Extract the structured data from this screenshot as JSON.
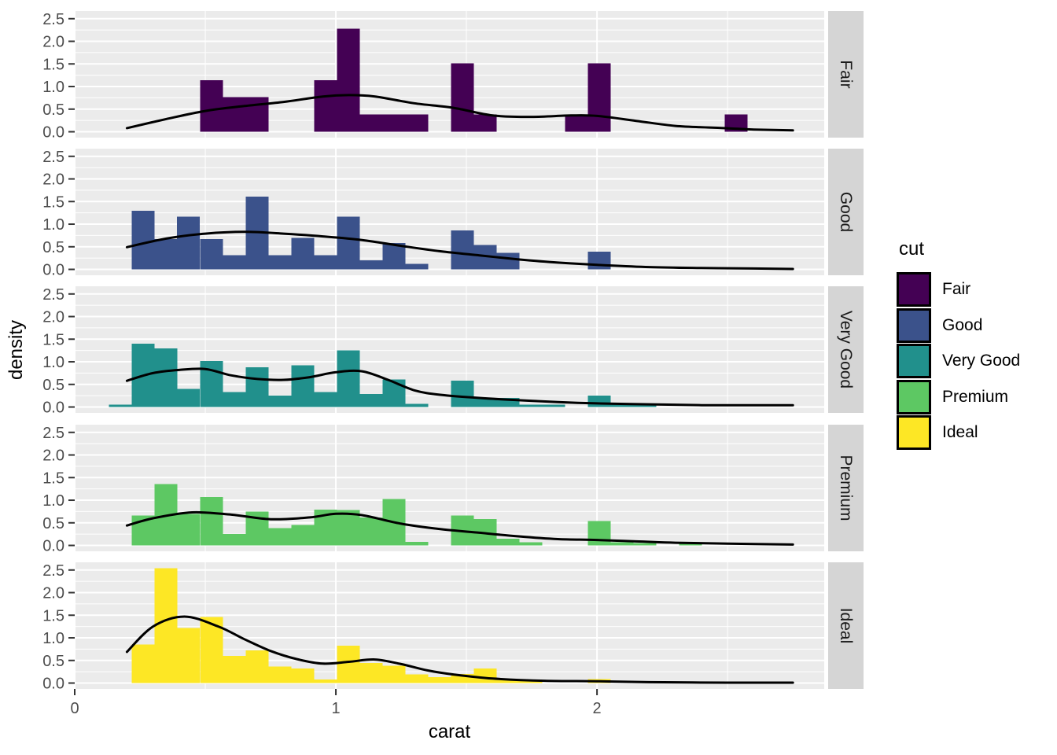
{
  "figure": {
    "xlabel": "carat",
    "ylabel": "density",
    "x_ticks": [
      {
        "v": 0,
        "label": "0"
      },
      {
        "v": 1,
        "label": "1"
      },
      {
        "v": 2,
        "label": "2"
      }
    ],
    "y_ticks": [
      {
        "v": 0.0,
        "label": "0.0"
      },
      {
        "v": 0.5,
        "label": "0.5"
      },
      {
        "v": 1.0,
        "label": "1.0"
      },
      {
        "v": 1.5,
        "label": "1.5"
      },
      {
        "v": 2.0,
        "label": "2.0"
      },
      {
        "v": 2.5,
        "label": "2.5"
      }
    ],
    "colors": {
      "panel_bg": "#EBEBEB",
      "grid": "#FFFFFF",
      "strip_bg": "#D5D5D5",
      "strip_text": "#1A1A1A",
      "tick_text": "#4D4D4D",
      "tick_mark": "#333333",
      "curve": "#000000"
    },
    "legend": {
      "title": "cut",
      "entries": [
        {
          "label": "Fair",
          "color": "#440154"
        },
        {
          "label": "Good",
          "color": "#3B528B"
        },
        {
          "label": "Very Good",
          "color": "#21908C"
        },
        {
          "label": "Premium",
          "color": "#5DC863"
        },
        {
          "label": "Ideal",
          "color": "#FDE725"
        }
      ]
    }
  },
  "chart_data": {
    "type": "faceted-histogram-with-density",
    "x_variable": "carat",
    "facet_variable": "cut",
    "bin_width": 0.0874,
    "xlim": [
      0,
      2.87
    ],
    "ylim": [
      -0.13,
      2.67
    ],
    "facets": [
      {
        "label": "Fair",
        "color": "#440154",
        "bars": [
          [
            0.48,
            1.14
          ],
          [
            0.567,
            0.77
          ],
          [
            0.655,
            0.77
          ],
          [
            0.917,
            1.14
          ],
          [
            1.004,
            2.28
          ],
          [
            1.091,
            0.38
          ],
          [
            1.179,
            0.38
          ],
          [
            1.266,
            0.38
          ],
          [
            1.441,
            1.51
          ],
          [
            1.528,
            0.38
          ],
          [
            1.877,
            0.38
          ],
          [
            1.965,
            1.51
          ],
          [
            2.489,
            0.38
          ]
        ],
        "density": [
          [
            0.2,
            0.08
          ],
          [
            0.35,
            0.28
          ],
          [
            0.5,
            0.46
          ],
          [
            0.65,
            0.57
          ],
          [
            0.8,
            0.66
          ],
          [
            0.95,
            0.78
          ],
          [
            1.05,
            0.81
          ],
          [
            1.15,
            0.78
          ],
          [
            1.3,
            0.63
          ],
          [
            1.45,
            0.53
          ],
          [
            1.6,
            0.36
          ],
          [
            1.75,
            0.33
          ],
          [
            1.9,
            0.36
          ],
          [
            2.0,
            0.35
          ],
          [
            2.15,
            0.24
          ],
          [
            2.3,
            0.13
          ],
          [
            2.45,
            0.09
          ],
          [
            2.6,
            0.05
          ],
          [
            2.75,
            0.03
          ]
        ]
      },
      {
        "label": "Good",
        "color": "#3B528B",
        "bars": [
          [
            0.218,
            1.3
          ],
          [
            0.305,
            0.67
          ],
          [
            0.392,
            1.17
          ],
          [
            0.48,
            0.67
          ],
          [
            0.567,
            0.31
          ],
          [
            0.655,
            1.61
          ],
          [
            0.742,
            0.31
          ],
          [
            0.829,
            0.7
          ],
          [
            0.917,
            0.31
          ],
          [
            1.004,
            1.17
          ],
          [
            1.091,
            0.2
          ],
          [
            1.179,
            0.58
          ],
          [
            1.266,
            0.12
          ],
          [
            1.441,
            0.86
          ],
          [
            1.528,
            0.54
          ],
          [
            1.615,
            0.37
          ],
          [
            1.965,
            0.39
          ]
        ],
        "density": [
          [
            0.2,
            0.49
          ],
          [
            0.35,
            0.68
          ],
          [
            0.5,
            0.79
          ],
          [
            0.65,
            0.83
          ],
          [
            0.8,
            0.79
          ],
          [
            0.95,
            0.73
          ],
          [
            1.1,
            0.65
          ],
          [
            1.25,
            0.52
          ],
          [
            1.4,
            0.4
          ],
          [
            1.55,
            0.31
          ],
          [
            1.7,
            0.22
          ],
          [
            1.85,
            0.15
          ],
          [
            2.0,
            0.1
          ],
          [
            2.2,
            0.05
          ],
          [
            2.4,
            0.03
          ],
          [
            2.6,
            0.02
          ],
          [
            2.75,
            0.01
          ]
        ]
      },
      {
        "label": "Very Good",
        "color": "#21908C",
        "bars": [
          [
            0.131,
            0.05
          ],
          [
            0.218,
            1.4
          ],
          [
            0.305,
            1.3
          ],
          [
            0.392,
            0.4
          ],
          [
            0.48,
            1.02
          ],
          [
            0.567,
            0.33
          ],
          [
            0.655,
            0.88
          ],
          [
            0.742,
            0.25
          ],
          [
            0.829,
            0.92
          ],
          [
            0.917,
            0.33
          ],
          [
            1.004,
            1.25
          ],
          [
            1.091,
            0.29
          ],
          [
            1.179,
            0.61
          ],
          [
            1.266,
            0.07
          ],
          [
            1.441,
            0.58
          ],
          [
            1.528,
            0.2
          ],
          [
            1.615,
            0.2
          ],
          [
            1.703,
            0.05
          ],
          [
            1.79,
            0.05
          ],
          [
            1.965,
            0.25
          ],
          [
            2.052,
            0.05
          ],
          [
            2.139,
            0.05
          ]
        ],
        "density": [
          [
            0.2,
            0.58
          ],
          [
            0.3,
            0.75
          ],
          [
            0.4,
            0.82
          ],
          [
            0.5,
            0.84
          ],
          [
            0.6,
            0.7
          ],
          [
            0.7,
            0.62
          ],
          [
            0.8,
            0.6
          ],
          [
            0.9,
            0.66
          ],
          [
            1.0,
            0.77
          ],
          [
            1.1,
            0.79
          ],
          [
            1.2,
            0.6
          ],
          [
            1.3,
            0.37
          ],
          [
            1.4,
            0.27
          ],
          [
            1.55,
            0.2
          ],
          [
            1.7,
            0.15
          ],
          [
            1.85,
            0.11
          ],
          [
            2.0,
            0.08
          ],
          [
            2.2,
            0.06
          ],
          [
            2.4,
            0.04
          ],
          [
            2.6,
            0.04
          ],
          [
            2.75,
            0.04
          ]
        ]
      },
      {
        "label": "Premium",
        "color": "#5DC863",
        "bars": [
          [
            0.218,
            0.66
          ],
          [
            0.305,
            1.36
          ],
          [
            0.392,
            0.7
          ],
          [
            0.48,
            1.07
          ],
          [
            0.567,
            0.25
          ],
          [
            0.655,
            0.75
          ],
          [
            0.742,
            0.38
          ],
          [
            0.829,
            0.45
          ],
          [
            0.917,
            0.79
          ],
          [
            1.004,
            0.78
          ],
          [
            1.091,
            0.62
          ],
          [
            1.179,
            1.03
          ],
          [
            1.266,
            0.08
          ],
          [
            1.441,
            0.66
          ],
          [
            1.528,
            0.58
          ],
          [
            1.615,
            0.15
          ],
          [
            1.703,
            0.07
          ],
          [
            1.965,
            0.54
          ],
          [
            2.052,
            0.07
          ],
          [
            2.139,
            0.05
          ],
          [
            2.314,
            0.04
          ]
        ],
        "density": [
          [
            0.2,
            0.44
          ],
          [
            0.3,
            0.6
          ],
          [
            0.45,
            0.73
          ],
          [
            0.6,
            0.68
          ],
          [
            0.75,
            0.58
          ],
          [
            0.9,
            0.62
          ],
          [
            1.0,
            0.7
          ],
          [
            1.1,
            0.67
          ],
          [
            1.25,
            0.48
          ],
          [
            1.4,
            0.36
          ],
          [
            1.55,
            0.28
          ],
          [
            1.7,
            0.2
          ],
          [
            1.85,
            0.14
          ],
          [
            2.0,
            0.12
          ],
          [
            2.15,
            0.09
          ],
          [
            2.3,
            0.06
          ],
          [
            2.5,
            0.04
          ],
          [
            2.75,
            0.02
          ]
        ]
      },
      {
        "label": "Ideal",
        "color": "#FDE725",
        "bars": [
          [
            0.218,
            0.85
          ],
          [
            0.305,
            2.54
          ],
          [
            0.392,
            1.22
          ],
          [
            0.48,
            1.46
          ],
          [
            0.567,
            0.6
          ],
          [
            0.655,
            0.72
          ],
          [
            0.742,
            0.37
          ],
          [
            0.829,
            0.32
          ],
          [
            0.917,
            0.08
          ],
          [
            1.004,
            0.83
          ],
          [
            1.091,
            0.44
          ],
          [
            1.179,
            0.38
          ],
          [
            1.266,
            0.19
          ],
          [
            1.353,
            0.13
          ],
          [
            1.441,
            0.2
          ],
          [
            1.528,
            0.32
          ],
          [
            1.615,
            0.09
          ],
          [
            1.703,
            0.05
          ],
          [
            1.965,
            0.09
          ]
        ],
        "density": [
          [
            0.2,
            0.69
          ],
          [
            0.3,
            1.25
          ],
          [
            0.42,
            1.47
          ],
          [
            0.55,
            1.25
          ],
          [
            0.65,
            0.97
          ],
          [
            0.75,
            0.71
          ],
          [
            0.85,
            0.53
          ],
          [
            0.95,
            0.43
          ],
          [
            1.05,
            0.47
          ],
          [
            1.15,
            0.52
          ],
          [
            1.25,
            0.42
          ],
          [
            1.35,
            0.28
          ],
          [
            1.45,
            0.19
          ],
          [
            1.6,
            0.1
          ],
          [
            1.8,
            0.05
          ],
          [
            2.0,
            0.04
          ],
          [
            2.2,
            0.02
          ],
          [
            2.5,
            0.01
          ],
          [
            2.75,
            0.01
          ]
        ]
      }
    ]
  }
}
